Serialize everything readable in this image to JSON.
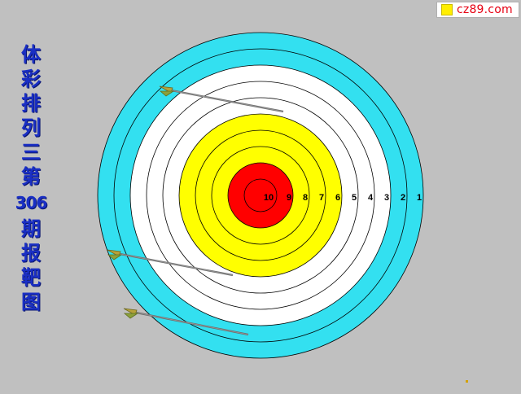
{
  "watermark": {
    "text": "cz89.com"
  },
  "title_chars": [
    "体",
    "彩",
    "排",
    "列",
    "三",
    "第",
    "306",
    "期",
    "报",
    "靶",
    "图"
  ],
  "ring_labels": [
    "10",
    "9",
    "8",
    "7",
    "6",
    "5",
    "4",
    "3",
    "2",
    "1"
  ],
  "colors": {
    "background": "#c0c0c0",
    "outer": "#33e0f0",
    "white": "#ffffff",
    "yellow": "#ffff00",
    "red": "#ff0000",
    "title": "#1a2fc4",
    "watermark": "#e60012"
  },
  "arrow_count": 3
}
